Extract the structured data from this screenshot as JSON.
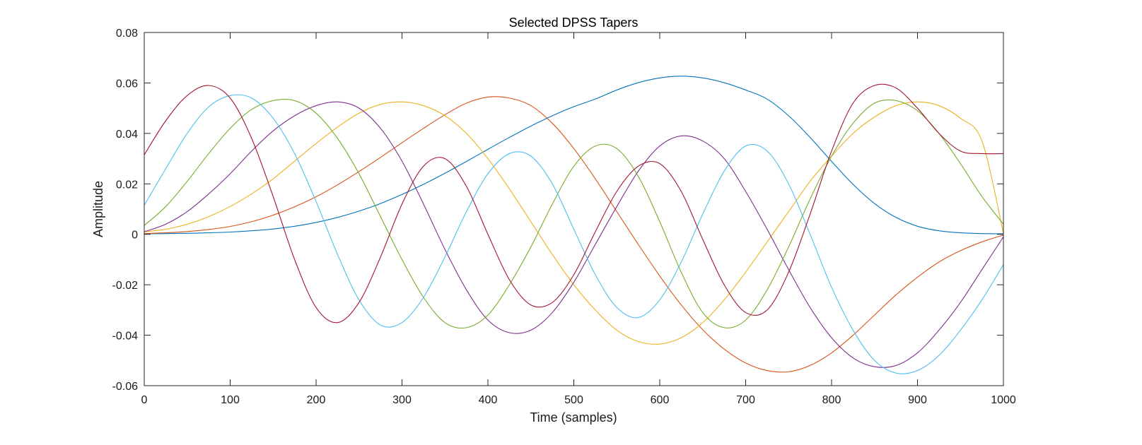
{
  "chart_data": {
    "type": "line",
    "title": "Selected DPSS Tapers",
    "xlabel": "Time (samples)",
    "ylabel": "Amplitude",
    "xlim": [
      0,
      1000
    ],
    "ylim": [
      -0.06,
      0.08
    ],
    "xticks": [
      0,
      100,
      200,
      300,
      400,
      500,
      600,
      700,
      800,
      900,
      1000
    ],
    "yticks": [
      -0.06,
      -0.04,
      -0.02,
      0,
      0.02,
      0.04,
      0.06,
      0.08
    ],
    "xtick_labels": [
      "0",
      "100",
      "200",
      "300",
      "400",
      "500",
      "600",
      "700",
      "800",
      "900",
      "1000"
    ],
    "ytick_labels": [
      "-0.06",
      "-0.04",
      "-0.02",
      "0",
      "0.02",
      "0.04",
      "0.06",
      "0.08"
    ],
    "grid": false,
    "x": [
      0,
      25,
      50,
      75,
      100,
      125,
      150,
      175,
      200,
      225,
      250,
      275,
      300,
      325,
      350,
      375,
      400,
      425,
      450,
      475,
      500,
      525,
      550,
      575,
      600,
      625,
      650,
      675,
      700,
      725,
      750,
      775,
      800,
      825,
      850,
      875,
      900,
      925,
      950,
      975,
      1000
    ],
    "series": [
      {
        "color": "#0072BD",
        "values": [
          0.0002,
          0.0003,
          0.0004,
          0.0006,
          0.0009,
          0.0014,
          0.0021,
          0.0032,
          0.0047,
          0.0067,
          0.0092,
          0.0122,
          0.0158,
          0.0198,
          0.0242,
          0.0289,
          0.0337,
          0.0384,
          0.0429,
          0.047,
          0.0506,
          0.0536,
          0.0572,
          0.0601,
          0.062,
          0.0627,
          0.062,
          0.0601,
          0.0572,
          0.0536,
          0.047,
          0.0384,
          0.0289,
          0.0198,
          0.0122,
          0.0067,
          0.0032,
          0.0014,
          0.0006,
          0.0003,
          0.0002
        ]
      },
      {
        "color": "#D95319",
        "values": [
          0.0003,
          0.0006,
          0.0011,
          0.0019,
          0.0031,
          0.005,
          0.0076,
          0.0109,
          0.0149,
          0.0196,
          0.0249,
          0.0305,
          0.0363,
          0.042,
          0.0474,
          0.052,
          0.0544,
          0.054,
          0.051,
          0.044,
          0.034,
          0.022,
          0.009,
          -0.004,
          -0.0165,
          -0.028,
          -0.0378,
          -0.0455,
          -0.051,
          -0.054,
          -0.0545,
          -0.052,
          -0.047,
          -0.04,
          -0.032,
          -0.024,
          -0.017,
          -0.011,
          -0.0065,
          -0.003,
          -0.0003
        ]
      },
      {
        "color": "#EDB120",
        "values": [
          0.001,
          0.002,
          0.004,
          0.007,
          0.011,
          0.016,
          0.022,
          0.029,
          0.036,
          0.0425,
          0.048,
          0.0515,
          0.0525,
          0.051,
          0.047,
          0.04,
          0.03,
          0.018,
          0.005,
          -0.008,
          -0.02,
          -0.03,
          -0.038,
          -0.0425,
          -0.0435,
          -0.041,
          -0.035,
          -0.026,
          -0.015,
          -0.003,
          0.009,
          0.021,
          0.031,
          0.04,
          0.0465,
          0.051,
          0.0525,
          0.051,
          0.046,
          0.037,
          0.0005
        ]
      },
      {
        "color": "#7E2F8E",
        "values": [
          0.001,
          0.004,
          0.009,
          0.016,
          0.024,
          0.033,
          0.041,
          0.047,
          0.051,
          0.0525,
          0.05,
          0.042,
          0.029,
          0.012,
          -0.006,
          -0.022,
          -0.034,
          -0.039,
          -0.038,
          -0.031,
          -0.019,
          -0.004,
          0.011,
          0.025,
          0.035,
          0.039,
          0.037,
          0.03,
          0.017,
          0.002,
          -0.014,
          -0.029,
          -0.041,
          -0.049,
          -0.0525,
          -0.052,
          -0.047,
          -0.038,
          -0.027,
          -0.014,
          -0.001
        ]
      },
      {
        "color": "#77AC30",
        "values": [
          0.0035,
          0.011,
          0.021,
          0.032,
          0.042,
          0.0495,
          0.053,
          0.053,
          0.048,
          0.038,
          0.024,
          0.007,
          -0.01,
          -0.025,
          -0.035,
          -0.037,
          -0.032,
          -0.02,
          -0.005,
          0.012,
          0.027,
          0.035,
          0.034,
          0.023,
          0.005,
          -0.015,
          -0.031,
          -0.037,
          -0.034,
          -0.022,
          -0.005,
          0.014,
          0.031,
          0.044,
          0.052,
          0.053,
          0.049,
          0.04,
          0.028,
          0.015,
          0.004
        ]
      },
      {
        "color": "#4DBEEE",
        "values": [
          0.0115,
          0.026,
          0.04,
          0.0505,
          0.055,
          0.054,
          0.046,
          0.032,
          0.013,
          -0.008,
          -0.026,
          -0.036,
          -0.035,
          -0.025,
          -0.009,
          0.009,
          0.024,
          0.032,
          0.031,
          0.02,
          0.002,
          -0.016,
          -0.029,
          -0.033,
          -0.026,
          -0.011,
          0.008,
          0.025,
          0.035,
          0.033,
          0.02,
          0.0,
          -0.021,
          -0.038,
          -0.05,
          -0.055,
          -0.054,
          -0.048,
          -0.038,
          -0.026,
          -0.012
        ]
      },
      {
        "color": "#A2142F",
        "values": [
          0.0315,
          0.045,
          0.055,
          0.059,
          0.054,
          0.038,
          0.015,
          -0.01,
          -0.029,
          -0.035,
          -0.027,
          -0.009,
          0.012,
          0.027,
          0.03,
          0.019,
          0.0,
          -0.018,
          -0.028,
          -0.027,
          -0.016,
          0.001,
          0.017,
          0.027,
          0.028,
          0.017,
          -0.002,
          -0.02,
          -0.031,
          -0.03,
          -0.015,
          0.008,
          0.033,
          0.052,
          0.059,
          0.058,
          0.05,
          0.04,
          0.033,
          0.032,
          0.032
        ]
      }
    ]
  }
}
